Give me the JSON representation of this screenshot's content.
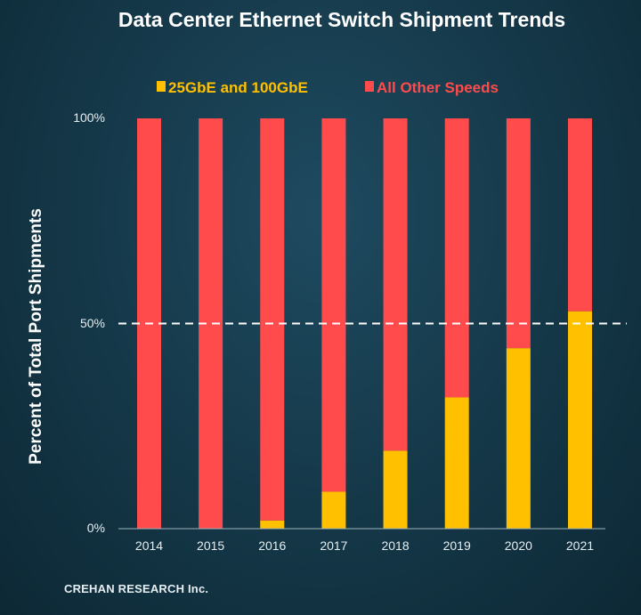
{
  "chart_data": {
    "type": "bar",
    "stacked": true,
    "title": "Data Center Ethernet Switch Shipment Trends",
    "ylabel": "Percent of Total Port Shipments",
    "xlabel": "",
    "categories": [
      "2014",
      "2015",
      "2016",
      "2017",
      "2018",
      "2019",
      "2020",
      "2021"
    ],
    "series": [
      {
        "name": "25GbE and 100GbE",
        "color": "#ffc000",
        "values": [
          0,
          0,
          2,
          9,
          19,
          32,
          44,
          53
        ]
      },
      {
        "name": "All Other Speeds",
        "color": "#ff4b4b",
        "values": [
          100,
          100,
          98,
          91,
          81,
          68,
          56,
          47
        ]
      }
    ],
    "ylim": [
      0,
      100
    ],
    "yticks": [
      "0%",
      "50%",
      "100%"
    ],
    "reference_line": {
      "value": 50,
      "style": "dashed",
      "color": "#ffffff"
    },
    "legend_position": "top-center",
    "grid": false
  },
  "footer": "CREHAN RESEARCH Inc."
}
